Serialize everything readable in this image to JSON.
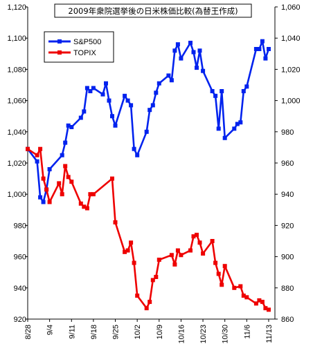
{
  "chart_data": {
    "type": "line",
    "title": "2009年衆院選挙後の日米株価比較(為替王作成)",
    "left_axis": {
      "series": "S&P500",
      "ylim": [
        920,
        1120
      ],
      "ticks": [
        "920",
        "940",
        "960",
        "980",
        "1,000",
        "1,020",
        "1,040",
        "1,060",
        "1,080",
        "1,100",
        "1,120"
      ]
    },
    "right_axis": {
      "series": "TOPIX",
      "ylim": [
        860,
        1060
      ],
      "ticks": [
        "860",
        "880",
        "900",
        "920",
        "940",
        "960",
        "980",
        "1,000",
        "1,020",
        "1,040",
        "1,060"
      ]
    },
    "x_tick_labels": [
      "8/28",
      "9/4",
      "9/11",
      "9/18",
      "9/25",
      "10/2",
      "10/9",
      "10/16",
      "10/23",
      "10/30",
      "11/6",
      "11/13"
    ],
    "x_domain": [
      "2009-08-28",
      "2009-11-15"
    ],
    "grid": false,
    "legend_position": "top-left",
    "colors": {
      "S&P500": "#0022ee",
      "TOPIX": "#ee0000"
    },
    "series": [
      {
        "name": "S&P500",
        "axis": "left",
        "points": [
          [
            "2009-08-28",
            1029
          ],
          [
            "2009-08-31",
            1021
          ],
          [
            "2009-09-01",
            998
          ],
          [
            "2009-09-02",
            995
          ],
          [
            "2009-09-03",
            1003
          ],
          [
            "2009-09-04",
            1016
          ],
          [
            "2009-09-08",
            1025
          ],
          [
            "2009-09-09",
            1033
          ],
          [
            "2009-09-10",
            1044
          ],
          [
            "2009-09-11",
            1043
          ],
          [
            "2009-09-14",
            1049
          ],
          [
            "2009-09-15",
            1053
          ],
          [
            "2009-09-16",
            1068
          ],
          [
            "2009-09-17",
            1066
          ],
          [
            "2009-09-18",
            1068
          ],
          [
            "2009-09-21",
            1064
          ],
          [
            "2009-09-22",
            1071
          ],
          [
            "2009-09-23",
            1060
          ],
          [
            "2009-09-24",
            1050
          ],
          [
            "2009-09-25",
            1044
          ],
          [
            "2009-09-28",
            1063
          ],
          [
            "2009-09-29",
            1060
          ],
          [
            "2009-09-30",
            1057
          ],
          [
            "2009-10-01",
            1029
          ],
          [
            "2009-10-02",
            1025
          ],
          [
            "2009-10-05",
            1040
          ],
          [
            "2009-10-06",
            1054
          ],
          [
            "2009-10-07",
            1057
          ],
          [
            "2009-10-08",
            1065
          ],
          [
            "2009-10-09",
            1071
          ],
          [
            "2009-10-12",
            1076
          ],
          [
            "2009-10-13",
            1073
          ],
          [
            "2009-10-14",
            1092
          ],
          [
            "2009-10-15",
            1096
          ],
          [
            "2009-10-16",
            1087
          ],
          [
            "2009-10-19",
            1097
          ],
          [
            "2009-10-20",
            1091
          ],
          [
            "2009-10-21",
            1081
          ],
          [
            "2009-10-22",
            1092
          ],
          [
            "2009-10-23",
            1079
          ],
          [
            "2009-10-26",
            1066
          ],
          [
            "2009-10-27",
            1063
          ],
          [
            "2009-10-28",
            1042
          ],
          [
            "2009-10-29",
            1066
          ],
          [
            "2009-10-30",
            1036
          ],
          [
            "2009-11-02",
            1042
          ],
          [
            "2009-11-03",
            1045
          ],
          [
            "2009-11-04",
            1046
          ],
          [
            "2009-11-05",
            1066
          ],
          [
            "2009-11-06",
            1069
          ],
          [
            "2009-11-09",
            1093
          ],
          [
            "2009-11-10",
            1093
          ],
          [
            "2009-11-11",
            1098
          ],
          [
            "2009-11-12",
            1087
          ],
          [
            "2009-11-13",
            1093
          ]
        ]
      },
      {
        "name": "TOPIX",
        "axis": "right",
        "points": [
          [
            "2009-08-28",
            969
          ],
          [
            "2009-08-31",
            965
          ],
          [
            "2009-09-01",
            969
          ],
          [
            "2009-09-02",
            950
          ],
          [
            "2009-09-03",
            943
          ],
          [
            "2009-09-04",
            935
          ],
          [
            "2009-09-07",
            947
          ],
          [
            "2009-09-08",
            940
          ],
          [
            "2009-09-09",
            958
          ],
          [
            "2009-09-10",
            951
          ],
          [
            "2009-09-11",
            948
          ],
          [
            "2009-09-14",
            934
          ],
          [
            "2009-09-15",
            932
          ],
          [
            "2009-09-16",
            931
          ],
          [
            "2009-09-17",
            940
          ],
          [
            "2009-09-18",
            940
          ],
          [
            "2009-09-24",
            950
          ],
          [
            "2009-09-25",
            922
          ],
          [
            "2009-09-28",
            903
          ],
          [
            "2009-09-29",
            904
          ],
          [
            "2009-09-30",
            909
          ],
          [
            "2009-10-01",
            896
          ],
          [
            "2009-10-02",
            875
          ],
          [
            "2009-10-05",
            867
          ],
          [
            "2009-10-06",
            871
          ],
          [
            "2009-10-07",
            885
          ],
          [
            "2009-10-08",
            887
          ],
          [
            "2009-10-09",
            898
          ],
          [
            "2009-10-13",
            901
          ],
          [
            "2009-10-14",
            895
          ],
          [
            "2009-10-15",
            904
          ],
          [
            "2009-10-16",
            901
          ],
          [
            "2009-10-19",
            904
          ],
          [
            "2009-10-20",
            913
          ],
          [
            "2009-10-21",
            914
          ],
          [
            "2009-10-22",
            909
          ],
          [
            "2009-10-23",
            902
          ],
          [
            "2009-10-26",
            910
          ],
          [
            "2009-10-27",
            896
          ],
          [
            "2009-10-28",
            889
          ],
          [
            "2009-10-29",
            882
          ],
          [
            "2009-10-30",
            894
          ],
          [
            "2009-11-02",
            880
          ],
          [
            "2009-11-04",
            881
          ],
          [
            "2009-11-05",
            875
          ],
          [
            "2009-11-06",
            874
          ],
          [
            "2009-11-09",
            870
          ],
          [
            "2009-11-10",
            872
          ],
          [
            "2009-11-11",
            871
          ],
          [
            "2009-11-12",
            867
          ],
          [
            "2009-11-13",
            866
          ]
        ]
      }
    ]
  }
}
